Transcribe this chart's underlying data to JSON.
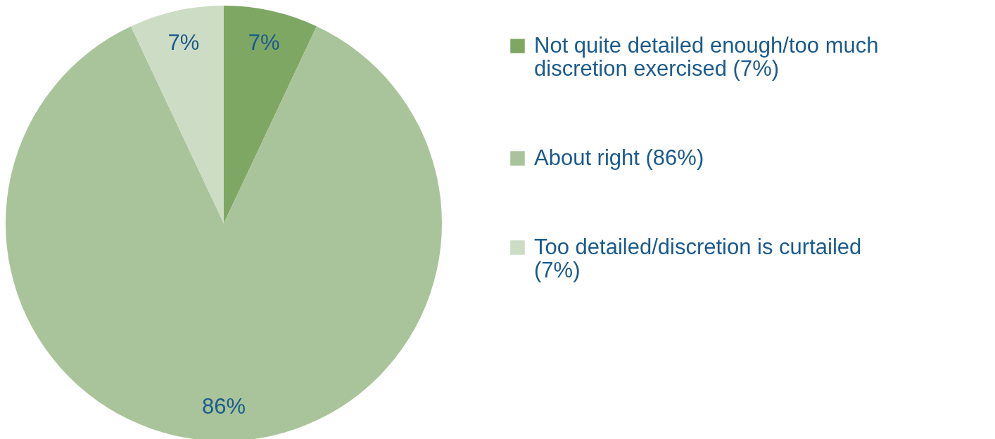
{
  "chart_data": {
    "type": "pie",
    "categories": [
      "Not quite detailed enough/too much discretion exercised (7%)",
      "About right (86%)",
      "Too detailed/discretion is curtailed (7%)"
    ],
    "values": [
      7,
      86,
      7
    ],
    "colors": [
      "#7ea764",
      "#a9c49a",
      "#cddcc4"
    ],
    "value_labels": [
      "7%",
      "86%",
      "7%"
    ],
    "legend": "right"
  }
}
